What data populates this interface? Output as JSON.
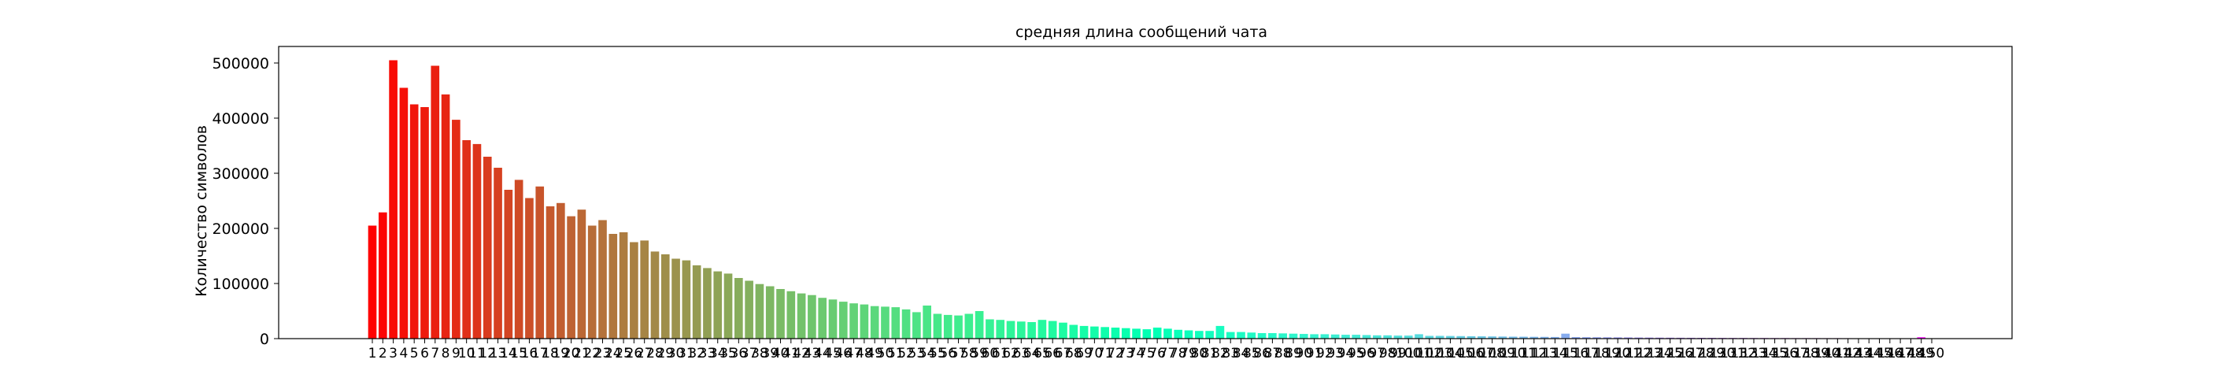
{
  "chart_data": {
    "type": "bar",
    "title": "средняя длина сообщений чата",
    "xlabel": "",
    "ylabel": "Количество символов",
    "ylim": [
      0,
      530000
    ],
    "yticks": [
      0,
      100000,
      200000,
      300000,
      400000,
      500000
    ],
    "ytick_labels": [
      "0",
      "100000",
      "200000",
      "300000",
      "400000",
      "500000"
    ],
    "grid": false,
    "colormap": "rainbow (red to purple)",
    "categories": [
      "1",
      "2",
      "3",
      "4",
      "5",
      "6",
      "7",
      "8",
      "9",
      "10",
      "11",
      "12",
      "13",
      "14",
      "15",
      "16",
      "17",
      "18",
      "19",
      "20",
      "21",
      "22",
      "23",
      "24",
      "25",
      "26",
      "27",
      "28",
      "29",
      "30",
      "31",
      "32",
      "33",
      "34",
      "35",
      "36",
      "37",
      "38",
      "39",
      "40",
      "41",
      "42",
      "43",
      "44",
      "45",
      "46",
      "47",
      "48",
      "49",
      "50",
      "51",
      "52",
      "53",
      "54",
      "55",
      "56",
      "57",
      "58",
      "59",
      "60",
      "61",
      "62",
      "63",
      "64",
      "65",
      "66",
      "67",
      "68",
      "69",
      "70",
      "71",
      "72",
      "73",
      "74",
      "75",
      "76",
      "77",
      "78",
      "79",
      "80",
      "81",
      "82",
      "83",
      "84",
      "85",
      "86",
      "87",
      "88",
      "89",
      "90",
      "91",
      "92",
      "93",
      "94",
      "95",
      "96",
      "97",
      "98",
      "99",
      "100",
      "101",
      "102",
      "103",
      "104",
      "105",
      "106",
      "107",
      "108",
      "109",
      "110",
      "111",
      "112",
      "113",
      "114",
      "115",
      "116",
      "117",
      "118",
      "119",
      "120",
      "121",
      "122",
      "123",
      "124",
      "125",
      "126",
      "127",
      "128",
      "129",
      "130",
      "131",
      "132",
      "133",
      "134",
      "135",
      "136",
      "137",
      "138",
      "139",
      "140",
      "141",
      "142",
      "143",
      "144",
      "145",
      "146",
      "147",
      "148",
      "149",
      "150"
    ],
    "values": [
      205000,
      229000,
      505000,
      455000,
      425000,
      420000,
      495000,
      443000,
      397000,
      360000,
      353000,
      330000,
      310000,
      270000,
      288000,
      255000,
      276000,
      240000,
      246000,
      222000,
      234000,
      205000,
      215000,
      190000,
      193000,
      175000,
      178000,
      158000,
      153000,
      145000,
      142000,
      133000,
      128000,
      122000,
      118000,
      110000,
      105000,
      99000,
      95000,
      90000,
      86000,
      82000,
      79000,
      74000,
      71000,
      67000,
      64000,
      62000,
      59000,
      58000,
      57000,
      53000,
      48000,
      60000,
      45000,
      43000,
      42000,
      45000,
      50000,
      35000,
      34000,
      32000,
      31000,
      30000,
      34000,
      32000,
      29000,
      25000,
      23000,
      22000,
      21000,
      20000,
      19000,
      18000,
      17000,
      20000,
      18000,
      16000,
      15000,
      14000,
      14000,
      23000,
      12000,
      12000,
      11000,
      10000,
      10000,
      9500,
      9000,
      8500,
      8000,
      8000,
      7500,
      7000,
      7000,
      6500,
      6000,
      6000,
      5500,
      5500,
      8000,
      5000,
      5000,
      4800,
      4600,
      4400,
      4200,
      4000,
      3800,
      3600,
      3500,
      3300,
      3200,
      3000,
      9000,
      2800,
      2600,
      2500,
      2400,
      2300,
      2200,
      2000,
      1900,
      1800,
      1700,
      1600,
      1500,
      1400,
      1400,
      1300,
      1200,
      1200,
      1100,
      1100,
      1000,
      1000,
      900,
      900,
      850,
      800,
      800,
      750,
      700,
      700,
      650,
      600,
      600,
      550,
      2500,
      500
    ]
  }
}
